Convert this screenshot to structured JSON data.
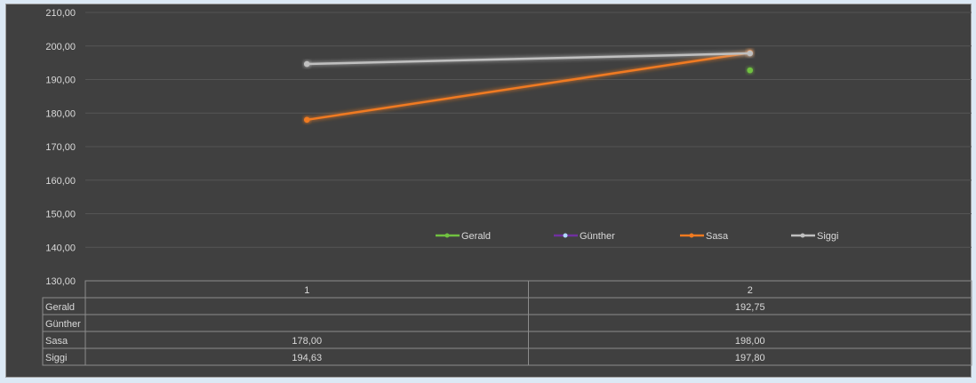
{
  "chart_data": {
    "type": "line",
    "categories": [
      "1",
      "2"
    ],
    "ylim": [
      130,
      210
    ],
    "yticks": [
      "130,00",
      "140,00",
      "150,00",
      "160,00",
      "170,00",
      "180,00",
      "190,00",
      "200,00",
      "210,00"
    ],
    "grid": true,
    "legend_placement": "inside-bottom",
    "series": [
      {
        "name": "Gerald",
        "values": [
          null,
          192.75
        ],
        "labels": [
          "",
          "192,75"
        ],
        "color": "#70c040"
      },
      {
        "name": "Günther",
        "values": [
          null,
          null
        ],
        "labels": [
          "",
          ""
        ],
        "color": "#7030a0",
        "marker_color": "#b0d8ff"
      },
      {
        "name": "Sasa",
        "values": [
          178.0,
          198.0
        ],
        "labels": [
          "178,00",
          "198,00"
        ],
        "color": "#f07a20"
      },
      {
        "name": "Siggi",
        "values": [
          194.63,
          197.8
        ],
        "labels": [
          "194,63",
          "197,80"
        ],
        "color": "#bfbfbf"
      }
    ],
    "data_table": true
  }
}
